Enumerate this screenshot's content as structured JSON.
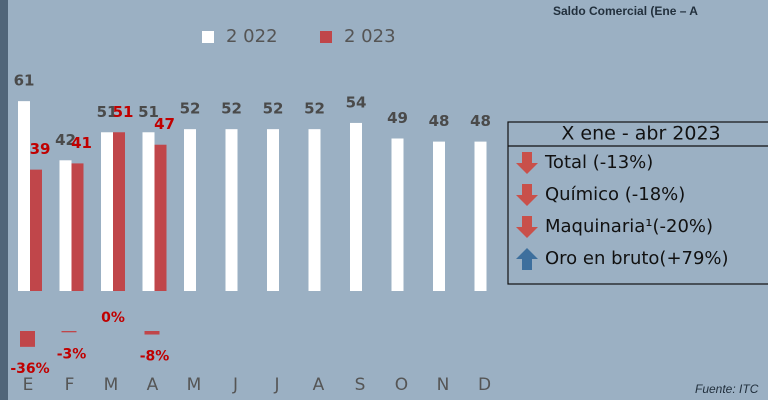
{
  "chart_data": {
    "type": "bar",
    "title": "Saldo Comercial (Ene – A",
    "categories": [
      "E",
      "F",
      "M",
      "A",
      "M",
      "J",
      "J",
      "A",
      "S",
      "O",
      "N",
      "D"
    ],
    "series": [
      {
        "name": "2 022",
        "color": "#ffffff",
        "values": [
          61,
          42,
          51,
          51,
          52,
          52,
          52,
          52,
          54,
          49,
          48,
          48
        ]
      },
      {
        "name": "2 023",
        "color": "#c0464a",
        "values": [
          39,
          41,
          51,
          47,
          null,
          null,
          null,
          null,
          null,
          null,
          null,
          null
        ]
      }
    ],
    "ylim": [
      0,
      93.5
    ],
    "change": {
      "values": [
        -36,
        -3,
        0,
        -8
      ],
      "value_labels": [
        "-36%",
        "-3%",
        "0%",
        "-8%"
      ]
    },
    "box": {
      "title": "X ene - abr 2023",
      "items": [
        {
          "text": "Total (-13%)",
          "direction": "down"
        },
        {
          "text": "Químico (-18%)",
          "direction": "down"
        },
        {
          "text": "Maquinaria¹(-20%)",
          "direction": "down"
        },
        {
          "text": "Oro en bruto(+79%)",
          "direction": "up"
        }
      ]
    },
    "source": "Fuente: ITC"
  }
}
